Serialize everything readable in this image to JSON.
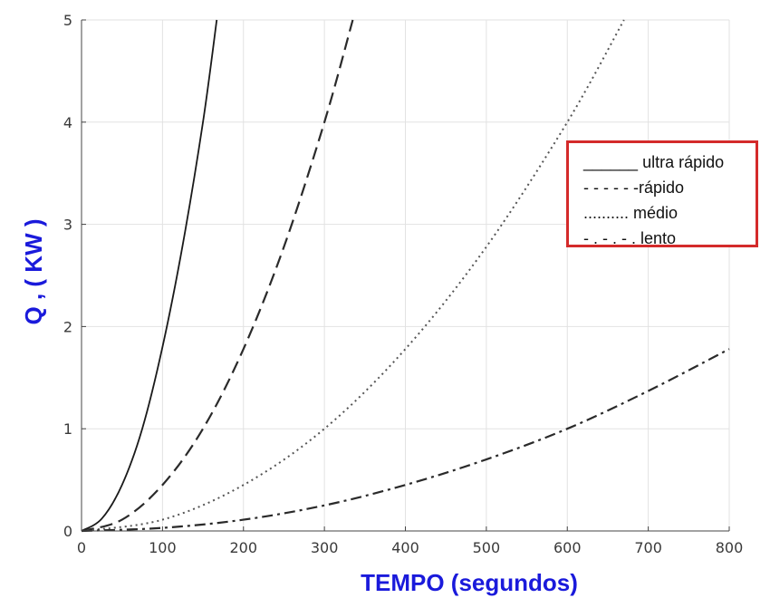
{
  "chart_data": {
    "type": "line",
    "xlabel": "TEMPO (segundos)",
    "ylabel": "Q , ( KW )",
    "xlim": [
      0,
      800
    ],
    "ylim": [
      0,
      5
    ],
    "x_ticks": [
      "0",
      "100",
      "200",
      "300",
      "400",
      "500",
      "600",
      "700",
      "800"
    ],
    "y_ticks": [
      "0",
      "1",
      "2",
      "3",
      "4",
      "5"
    ],
    "grid": true,
    "legend_position": "top-right",
    "legend": [
      "______ ultra rápido",
      "- - - - - -rápido",
      ".......... médio",
      "- . - . - . lento"
    ],
    "series": [
      {
        "name": "ultra rápido",
        "style": "solid",
        "x": [
          0,
          25,
          50,
          75,
          100,
          125,
          150,
          167
        ],
        "y": [
          0,
          0.12,
          0.45,
          1.0,
          1.8,
          2.8,
          4.0,
          5.0
        ]
      },
      {
        "name": "rápido",
        "style": "dashed",
        "x": [
          0,
          50,
          100,
          150,
          200,
          250,
          300,
          335
        ],
        "y": [
          0,
          0.11,
          0.45,
          1.0,
          1.78,
          2.78,
          4.0,
          5.0
        ]
      },
      {
        "name": "médio",
        "style": "dotted",
        "x": [
          0,
          100,
          200,
          300,
          400,
          500,
          600,
          670
        ],
        "y": [
          0,
          0.11,
          0.45,
          1.0,
          1.78,
          2.78,
          4.0,
          5.0
        ]
      },
      {
        "name": "lento",
        "style": "dashdot",
        "x": [
          0,
          100,
          200,
          300,
          400,
          500,
          600,
          700,
          800
        ],
        "y": [
          0,
          0.03,
          0.11,
          0.25,
          0.45,
          0.7,
          1.0,
          1.37,
          1.78
        ]
      }
    ],
    "colors": {
      "lines": "#1a1a1a",
      "grid": "#e2e2e2",
      "axis_title": "#1a1adb",
      "legend_border": "#d42a2a"
    }
  }
}
